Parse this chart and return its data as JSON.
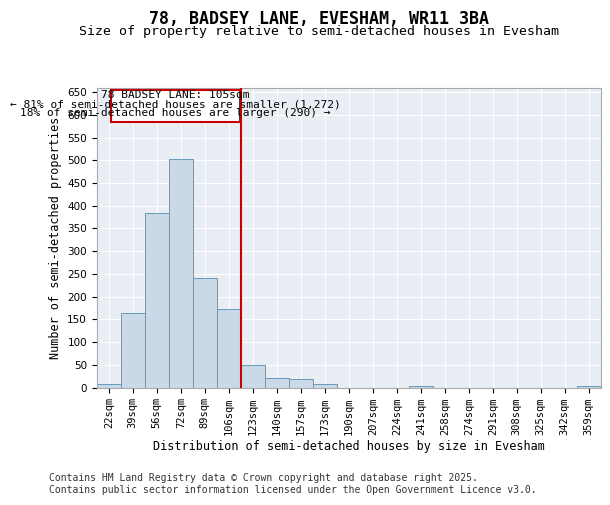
{
  "title": "78, BADSEY LANE, EVESHAM, WR11 3BA",
  "subtitle": "Size of property relative to semi-detached houses in Evesham",
  "xlabel": "Distribution of semi-detached houses by size in Evesham",
  "ylabel": "Number of semi-detached properties",
  "categories": [
    "22sqm",
    "39sqm",
    "56sqm",
    "72sqm",
    "89sqm",
    "106sqm",
    "123sqm",
    "140sqm",
    "157sqm",
    "173sqm",
    "190sqm",
    "207sqm",
    "224sqm",
    "241sqm",
    "258sqm",
    "274sqm",
    "291sqm",
    "308sqm",
    "325sqm",
    "342sqm",
    "359sqm"
  ],
  "values": [
    8,
    163,
    383,
    503,
    242,
    172,
    50,
    20,
    18,
    8,
    0,
    0,
    0,
    3,
    0,
    0,
    0,
    0,
    0,
    0,
    3
  ],
  "bar_color": "#c9d9e8",
  "bar_edge_color": "#6699bb",
  "highlight_index": 5,
  "highlight_line_color": "#cc0000",
  "annotation_line1": "78 BADSEY LANE: 105sqm",
  "annotation_line2": "← 81% of semi-detached houses are smaller (1,272)",
  "annotation_line3": "18% of semi-detached houses are larger (290) →",
  "ylim": [
    0,
    660
  ],
  "yticks": [
    0,
    50,
    100,
    150,
    200,
    250,
    300,
    350,
    400,
    450,
    500,
    550,
    600,
    650
  ],
  "background_color": "#e8eef4",
  "footer_text": "Contains HM Land Registry data © Crown copyright and database right 2025.\nContains public sector information licensed under the Open Government Licence v3.0.",
  "title_fontsize": 12,
  "subtitle_fontsize": 9.5,
  "axis_label_fontsize": 8.5,
  "tick_fontsize": 7.5,
  "annotation_fontsize": 8,
  "footer_fontsize": 7
}
